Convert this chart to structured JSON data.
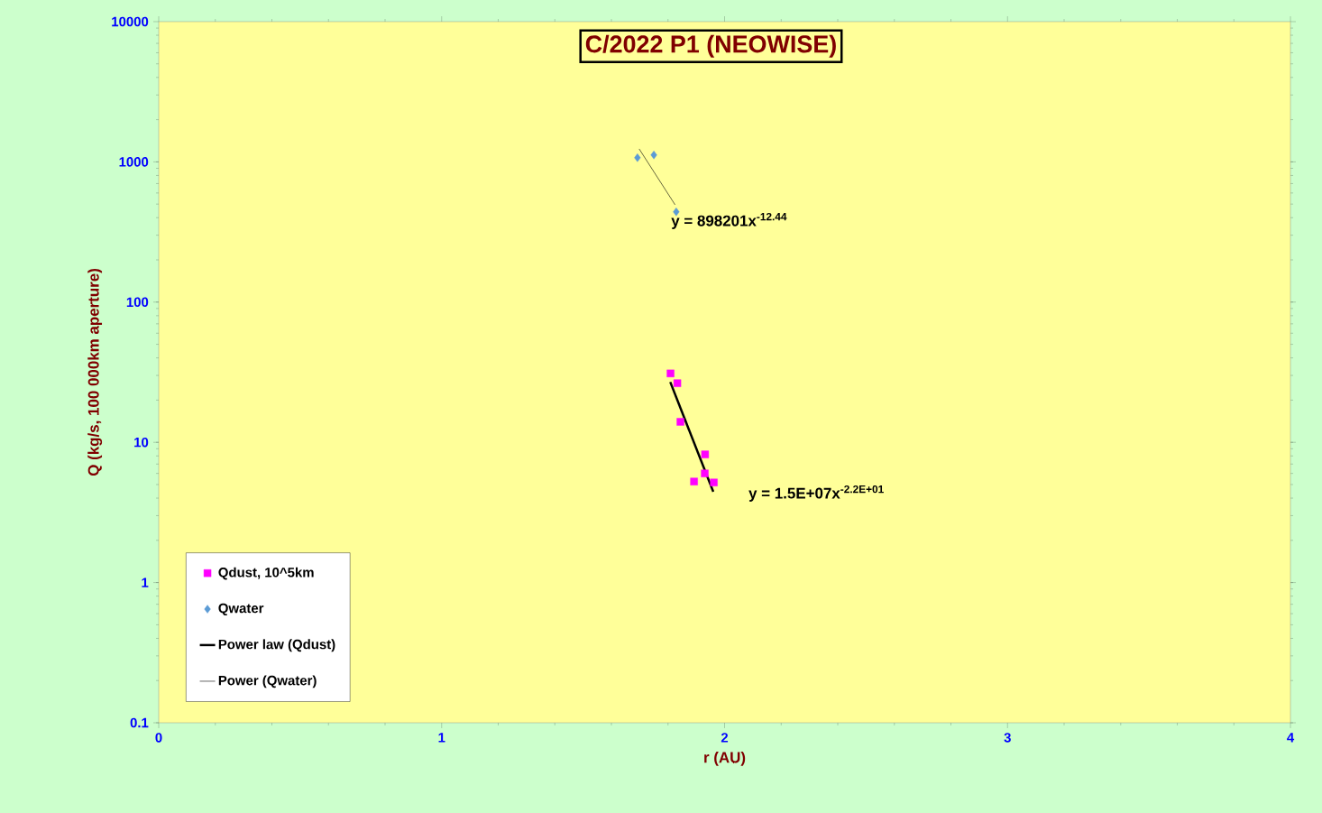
{
  "chart_data": {
    "type": "scatter",
    "title": "C/2022 P1 (NEOWISE)",
    "xlabel": "r (AU)",
    "ylabel": "Q (kg/s, 100 000km aperture)",
    "xlim": [
      0,
      4
    ],
    "xticks": [
      0,
      1,
      2,
      3,
      4
    ],
    "ylim": [
      0.1,
      10000
    ],
    "yticks": [
      0.1,
      1,
      10,
      100,
      1000,
      10000
    ],
    "log": "y",
    "grid": false,
    "legend": "bottom left",
    "series": [
      {
        "name": "Qdust, 10^5km",
        "color": "#ff00ff",
        "marker": "square",
        "x": [
          1.809,
          1.833,
          1.844,
          1.931,
          1.93,
          1.892,
          1.962
        ],
        "values": [
          31,
          26.4,
          14,
          8.2,
          6.0,
          5.25,
          5.17
        ]
      },
      {
        "name": "Qwater",
        "color": "#5b9bd5",
        "marker": "diamond",
        "x": [
          1.692,
          1.75,
          1.829
        ],
        "values": [
          1070,
          1120,
          440
        ]
      },
      {
        "name": "Power law (Qdust)",
        "type": "line",
        "color": "#000000",
        "marker": "none",
        "x": [
          1.808,
          1.96
        ],
        "values": [
          26.9,
          4.44
        ]
      },
      {
        "name": "Power (Qwater)",
        "type": "line",
        "color": "#000000",
        "marker": "none",
        "x": [
          1.698,
          1.825
        ],
        "values": [
          1238,
          494
        ]
      }
    ],
    "annotations": [
      "y = 898201x$^{-12.44}$",
      "y = 1.5E+07x$^{-2.2E+01}$"
    ]
  }
}
